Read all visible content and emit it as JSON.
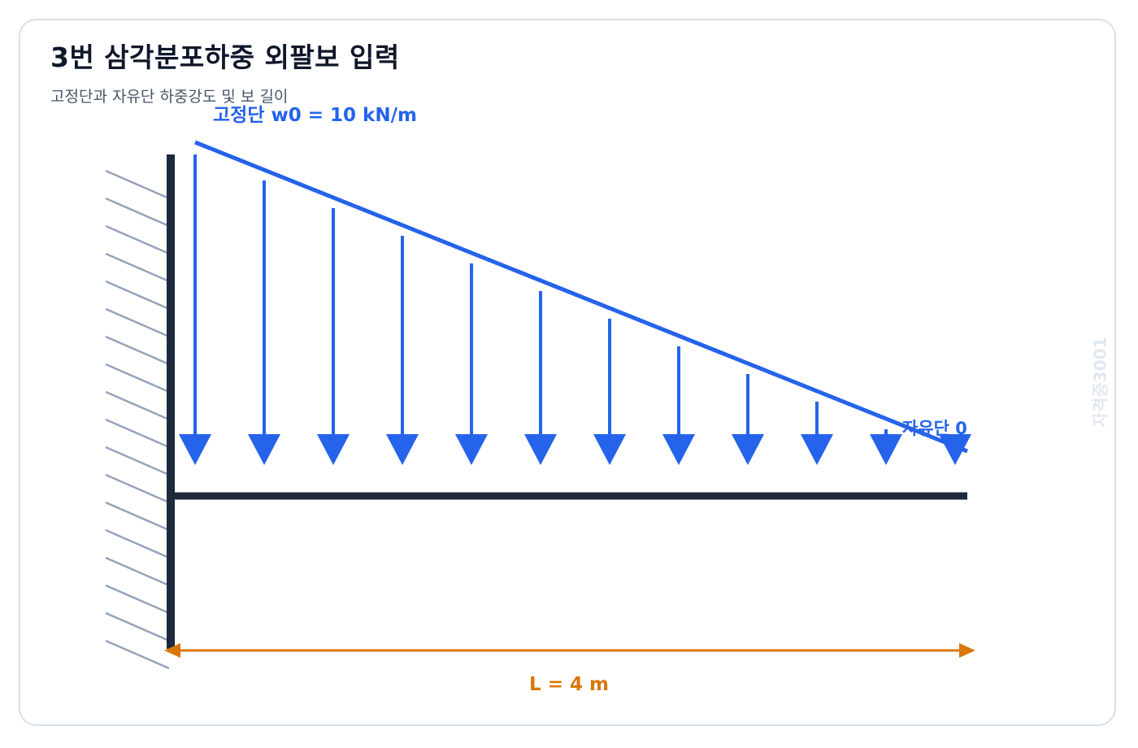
{
  "header": {
    "title": "3번 삼각분포하중 외팔보 입력",
    "subtitle": "고정단과 자유단 하중강도 및 보 길이"
  },
  "labels": {
    "fixed_end_load": "고정단 w0 = 10 kN/m",
    "free_end_load": "자유단 0",
    "length": "L = 4 m"
  },
  "watermark": "자격증3001",
  "load": {
    "type": "triangular-distributed",
    "w0_kN_per_m": 10,
    "free_end_kN_per_m": 0,
    "arrow_count": 12
  },
  "beam": {
    "type": "cantilever",
    "length_m": 4
  },
  "colors": {
    "load": "#2563eb",
    "beam": "#1e293b",
    "hatch": "#94a3b8",
    "dimension": "#d97706",
    "title": "#0f172a"
  }
}
